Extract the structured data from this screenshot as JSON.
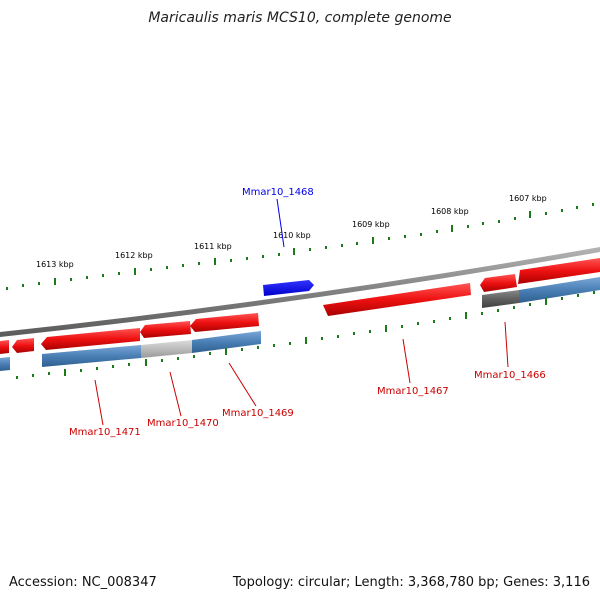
{
  "title": "Maricaulis maris MCS10, complete genome",
  "footer": {
    "accession": "Accession: NC_008347",
    "summary": "Topology: circular; Length: 3,368,780 bp; Genes: 3,116"
  },
  "ticks": [
    "1613 kbp",
    "1612 kbp",
    "1611 kbp",
    "1610 kbp",
    "1609 kbp",
    "1608 kbp",
    "1607 kbp"
  ],
  "genes": {
    "g1468": "Mmar10_1468",
    "g1467": "Mmar10_1467",
    "g1466": "Mmar10_1466",
    "g1469": "Mmar10_1469",
    "g1470": "Mmar10_1470",
    "g1471": "Mmar10_1471"
  },
  "colors": {
    "highlight": "#0000ee",
    "label_red": "#cc0000",
    "backbone": "#808080",
    "gene_red": "#ee1111",
    "cds_blue": "#4a7fb5",
    "tick_green": "#1a7a1a"
  }
}
